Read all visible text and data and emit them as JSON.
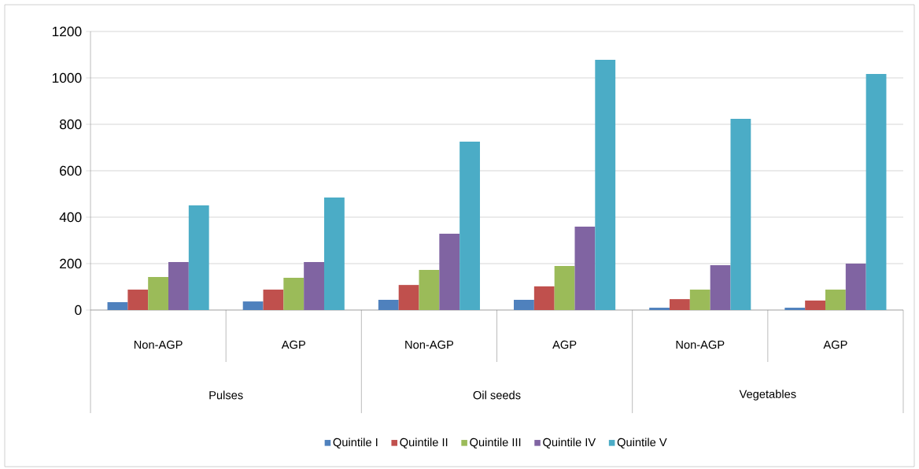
{
  "chart_data": {
    "type": "bar",
    "categories": [
      "Non-AGP",
      "AGP",
      "Non-AGP",
      "AGP",
      "Non-AGP",
      "AGP"
    ],
    "annotations": [
      "Pulses",
      "Oil seeds",
      "Vegetables"
    ],
    "series": [
      {
        "name": "Quintile I",
        "color": "#4f81bd",
        "values": [
          34,
          37,
          44,
          44,
          10,
          10
        ]
      },
      {
        "name": "Quintile II",
        "color": "#c0504d",
        "values": [
          88,
          88,
          108,
          102,
          47,
          41
        ]
      },
      {
        "name": "Quintile III",
        "color": "#9bbb59",
        "values": [
          142,
          139,
          173,
          190,
          88,
          88
        ]
      },
      {
        "name": "Quintile IV",
        "color": "#8064a2",
        "values": [
          207,
          207,
          329,
          359,
          193,
          200
        ]
      },
      {
        "name": "Quintile V",
        "color": "#4bacc6",
        "values": [
          451,
          485,
          725,
          1078,
          824,
          1017
        ]
      }
    ],
    "ylim": [
      0,
      1200
    ],
    "yticks": [
      0,
      200,
      400,
      600,
      800,
      1000,
      1200
    ],
    "grid": "y",
    "legend": "bottom"
  }
}
